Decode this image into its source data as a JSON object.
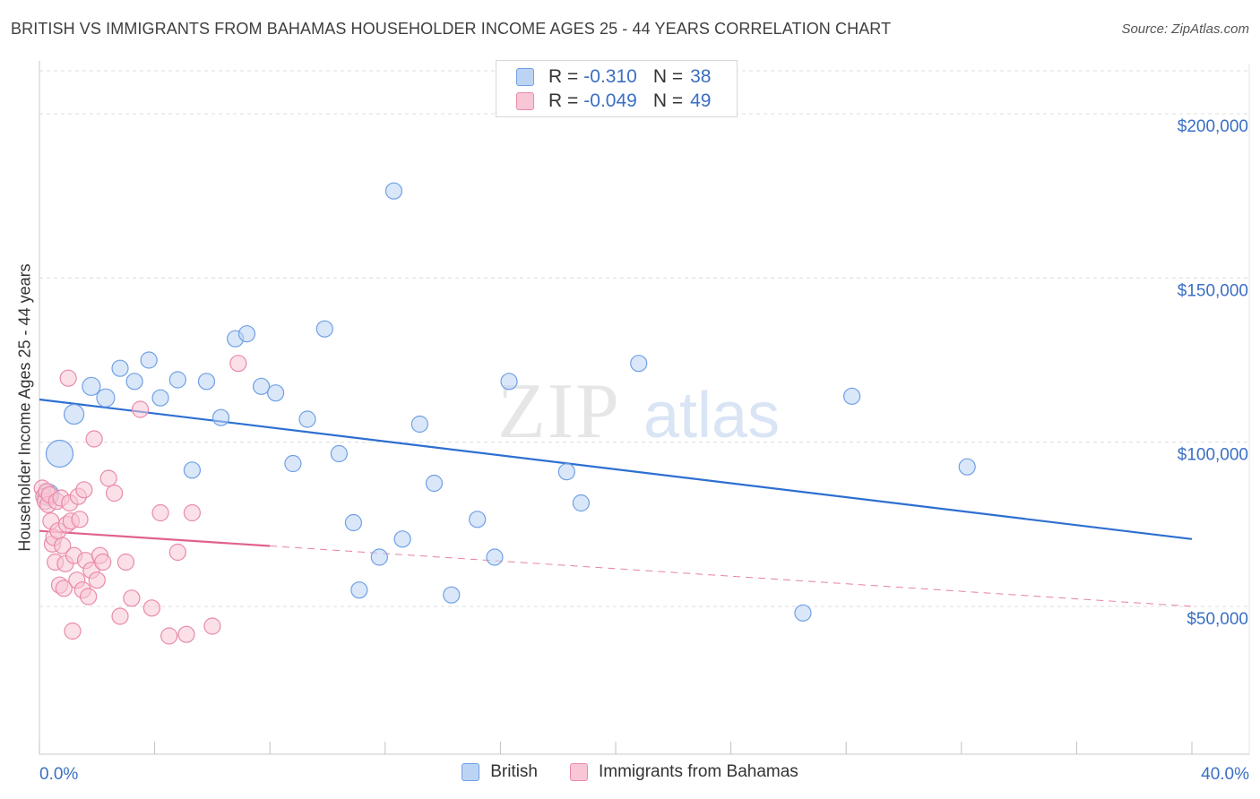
{
  "chart_data": {
    "type": "scatter",
    "title": "BRITISH VS IMMIGRANTS FROM BAHAMAS HOUSEHOLDER INCOME AGES 25 - 44 YEARS CORRELATION CHART",
    "source": "Source: ZipAtlas.com",
    "watermark": "ZIPatlas",
    "xlabel": "",
    "ylabel": "Householder Income Ages 25 - 44 years",
    "xlim": [
      0,
      40
    ],
    "ylim": [
      5000,
      215000
    ],
    "x_tick_labels": {
      "left": "0.0%",
      "right": "40.0%"
    },
    "x_minor_ticks": [
      0,
      4,
      8,
      12,
      16,
      20,
      24,
      28,
      32,
      36,
      40
    ],
    "y_ticks": [
      {
        "value": 50000,
        "label": "$50,000"
      },
      {
        "value": 100000,
        "label": "$100,000"
      },
      {
        "value": 150000,
        "label": "$150,000"
      },
      {
        "value": 200000,
        "label": "$200,000"
      }
    ],
    "grid": true,
    "legend": {
      "position": "top-center",
      "entries": [
        {
          "name": "British",
          "r_label": "R =",
          "r_value": "-0.310",
          "n_label": "N =",
          "n_value": "38",
          "color": "#6fa0e6",
          "fill": "#bcd4f4"
        },
        {
          "name": "Immigrants from Bahamas",
          "r_label": "R =",
          "r_value": "-0.049",
          "n_label": "N =",
          "n_value": "49",
          "color": "#e98aa8",
          "fill": "#f8c6d5"
        }
      ]
    },
    "series": [
      {
        "name": "British",
        "color": "#6fa0e6",
        "fill": "#bcd4f4",
        "trend": {
          "x0": 0,
          "y0": 113000,
          "x1": 40,
          "y1": 70500,
          "solid_to": 40,
          "color": "#2d6fd1"
        },
        "points": [
          {
            "x": 0.3,
            "y": 84000,
            "s": 12
          },
          {
            "x": 0.7,
            "y": 96500,
            "s": 15
          },
          {
            "x": 1.2,
            "y": 108500,
            "s": 11
          },
          {
            "x": 1.8,
            "y": 117000,
            "s": 10
          },
          {
            "x": 2.3,
            "y": 113500,
            "s": 10
          },
          {
            "x": 2.8,
            "y": 122500,
            "s": 9
          },
          {
            "x": 3.3,
            "y": 118500,
            "s": 9
          },
          {
            "x": 3.8,
            "y": 125000,
            "s": 9
          },
          {
            "x": 4.2,
            "y": 113500,
            "s": 9
          },
          {
            "x": 4.8,
            "y": 119000,
            "s": 9
          },
          {
            "x": 5.3,
            "y": 91500,
            "s": 9
          },
          {
            "x": 5.8,
            "y": 118500,
            "s": 9
          },
          {
            "x": 6.3,
            "y": 107500,
            "s": 9
          },
          {
            "x": 6.8,
            "y": 131500,
            "s": 9
          },
          {
            "x": 7.2,
            "y": 133000,
            "s": 9
          },
          {
            "x": 7.7,
            "y": 117000,
            "s": 9
          },
          {
            "x": 8.2,
            "y": 115000,
            "s": 9
          },
          {
            "x": 8.8,
            "y": 93500,
            "s": 9
          },
          {
            "x": 9.3,
            "y": 107000,
            "s": 9
          },
          {
            "x": 9.9,
            "y": 134500,
            "s": 9
          },
          {
            "x": 10.4,
            "y": 96500,
            "s": 9
          },
          {
            "x": 10.9,
            "y": 75500,
            "s": 9
          },
          {
            "x": 11.1,
            "y": 55000,
            "s": 9
          },
          {
            "x": 11.8,
            "y": 65000,
            "s": 9
          },
          {
            "x": 12.3,
            "y": 176500,
            "s": 9
          },
          {
            "x": 12.6,
            "y": 70500,
            "s": 9
          },
          {
            "x": 13.2,
            "y": 105500,
            "s": 9
          },
          {
            "x": 13.7,
            "y": 87500,
            "s": 9
          },
          {
            "x": 14.3,
            "y": 53500,
            "s": 9
          },
          {
            "x": 15.2,
            "y": 76500,
            "s": 9
          },
          {
            "x": 15.8,
            "y": 65000,
            "s": 9
          },
          {
            "x": 16.3,
            "y": 118500,
            "s": 9
          },
          {
            "x": 18.3,
            "y": 91000,
            "s": 9
          },
          {
            "x": 18.8,
            "y": 81500,
            "s": 9
          },
          {
            "x": 20.8,
            "y": 124000,
            "s": 9
          },
          {
            "x": 26.5,
            "y": 48000,
            "s": 9
          },
          {
            "x": 28.2,
            "y": 114000,
            "s": 9
          },
          {
            "x": 32.2,
            "y": 92500,
            "s": 9
          }
        ]
      },
      {
        "name": "Immigrants from Bahamas",
        "color": "#e98aa8",
        "fill": "#f8c6d5",
        "trend": {
          "x0": 0,
          "y0": 73000,
          "x1": 40,
          "y1": 50000,
          "solid_to": 8,
          "color": "#e0628d"
        },
        "points": [
          {
            "x": 0.1,
            "y": 86000,
            "s": 9
          },
          {
            "x": 0.15,
            "y": 83500,
            "s": 9
          },
          {
            "x": 0.2,
            "y": 82000,
            "s": 9
          },
          {
            "x": 0.25,
            "y": 85000,
            "s": 9
          },
          {
            "x": 0.3,
            "y": 81000,
            "s": 9
          },
          {
            "x": 0.35,
            "y": 84000,
            "s": 9
          },
          {
            "x": 0.4,
            "y": 76000,
            "s": 9
          },
          {
            "x": 0.45,
            "y": 69000,
            "s": 9
          },
          {
            "x": 0.5,
            "y": 71000,
            "s": 9
          },
          {
            "x": 0.55,
            "y": 63500,
            "s": 9
          },
          {
            "x": 0.6,
            "y": 82000,
            "s": 9
          },
          {
            "x": 0.65,
            "y": 73000,
            "s": 9
          },
          {
            "x": 0.7,
            "y": 56500,
            "s": 9
          },
          {
            "x": 0.75,
            "y": 83000,
            "s": 9
          },
          {
            "x": 0.8,
            "y": 68500,
            "s": 9
          },
          {
            "x": 0.85,
            "y": 55500,
            "s": 9
          },
          {
            "x": 0.9,
            "y": 63000,
            "s": 9
          },
          {
            "x": 0.95,
            "y": 75000,
            "s": 9
          },
          {
            "x": 1.0,
            "y": 119500,
            "s": 9
          },
          {
            "x": 1.05,
            "y": 81500,
            "s": 9
          },
          {
            "x": 1.1,
            "y": 76000,
            "s": 9
          },
          {
            "x": 1.15,
            "y": 42500,
            "s": 9
          },
          {
            "x": 1.2,
            "y": 65500,
            "s": 9
          },
          {
            "x": 1.3,
            "y": 58000,
            "s": 9
          },
          {
            "x": 1.35,
            "y": 83500,
            "s": 9
          },
          {
            "x": 1.4,
            "y": 76500,
            "s": 9
          },
          {
            "x": 1.5,
            "y": 55000,
            "s": 9
          },
          {
            "x": 1.55,
            "y": 85500,
            "s": 9
          },
          {
            "x": 1.6,
            "y": 64000,
            "s": 9
          },
          {
            "x": 1.7,
            "y": 53000,
            "s": 9
          },
          {
            "x": 1.8,
            "y": 61000,
            "s": 9
          },
          {
            "x": 1.9,
            "y": 101000,
            "s": 9
          },
          {
            "x": 2.0,
            "y": 58000,
            "s": 9
          },
          {
            "x": 2.1,
            "y": 65500,
            "s": 9
          },
          {
            "x": 2.2,
            "y": 63500,
            "s": 9
          },
          {
            "x": 2.4,
            "y": 89000,
            "s": 9
          },
          {
            "x": 2.6,
            "y": 84500,
            "s": 9
          },
          {
            "x": 2.8,
            "y": 47000,
            "s": 9
          },
          {
            "x": 3.0,
            "y": 63500,
            "s": 9
          },
          {
            "x": 3.2,
            "y": 52500,
            "s": 9
          },
          {
            "x": 3.5,
            "y": 110000,
            "s": 9
          },
          {
            "x": 3.9,
            "y": 49500,
            "s": 9
          },
          {
            "x": 4.2,
            "y": 78500,
            "s": 9
          },
          {
            "x": 4.5,
            "y": 41000,
            "s": 9
          },
          {
            "x": 4.8,
            "y": 66500,
            "s": 9
          },
          {
            "x": 5.1,
            "y": 41500,
            "s": 9
          },
          {
            "x": 5.3,
            "y": 78500,
            "s": 9
          },
          {
            "x": 6.0,
            "y": 44000,
            "s": 9
          },
          {
            "x": 6.9,
            "y": 124000,
            "s": 9
          }
        ]
      }
    ]
  }
}
